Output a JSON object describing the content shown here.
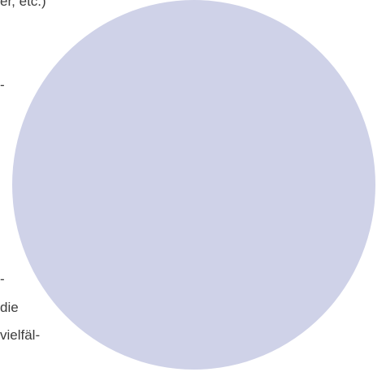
{
  "document": {
    "fragments": [
      {
        "text": "er, etc.)"
      },
      {
        "text": "-"
      },
      {
        "text": "-"
      },
      {
        "text": "die"
      },
      {
        "text": "vielfäl-"
      }
    ],
    "figure": {
      "shape": "circle",
      "fill_color": "#cfd2e8"
    }
  }
}
